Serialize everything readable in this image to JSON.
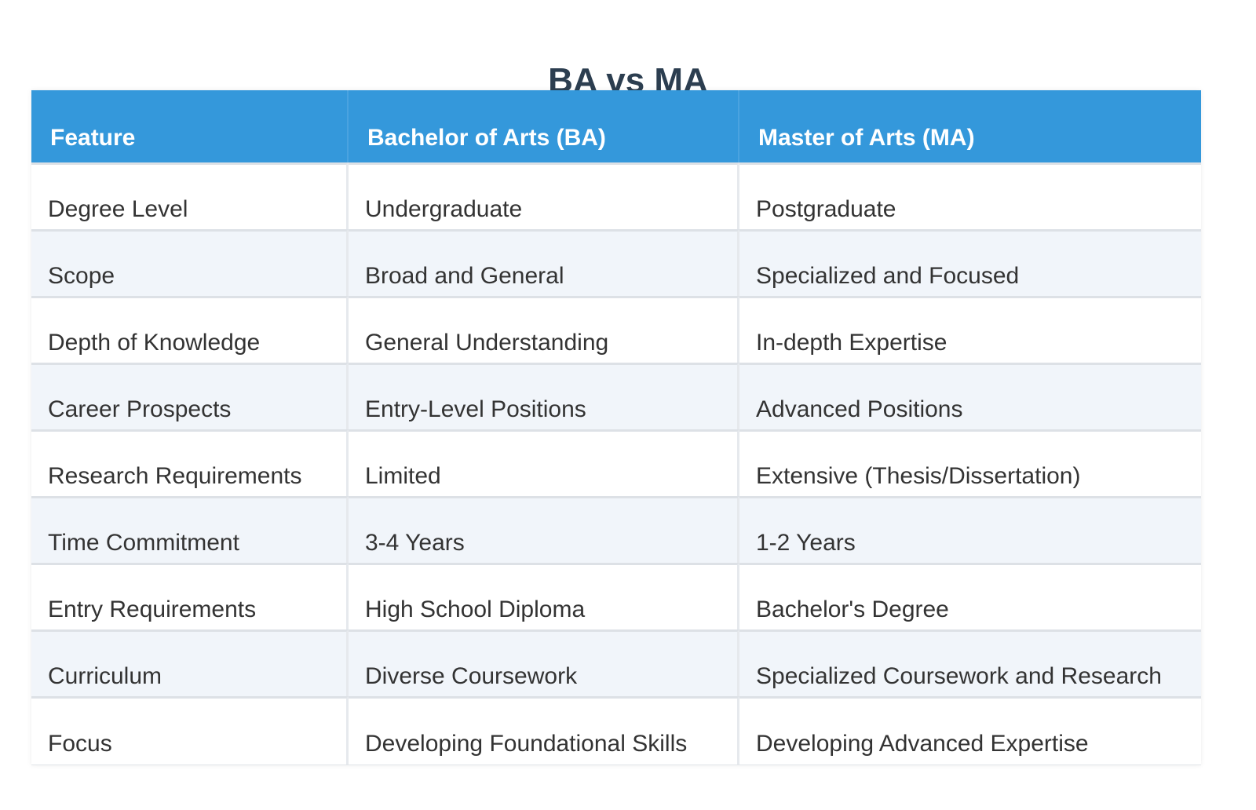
{
  "title": "BA vs MA",
  "table": {
    "headers": [
      "Feature",
      "Bachelor of Arts (BA)",
      "Master of Arts (MA)"
    ],
    "rows": [
      [
        "Degree Level",
        "Undergraduate",
        "Postgraduate"
      ],
      [
        "Scope",
        "Broad and General",
        "Specialized and Focused"
      ],
      [
        "Depth of Knowledge",
        "General Understanding",
        "In-depth Expertise"
      ],
      [
        "Career Prospects",
        "Entry-Level Positions",
        "Advanced Positions"
      ],
      [
        "Research Requirements",
        "Limited",
        "Extensive (Thesis/Dissertation)"
      ],
      [
        "Time Commitment",
        "3-4 Years",
        "1-2 Years"
      ],
      [
        "Entry Requirements",
        "High School Diploma",
        "Bachelor's Degree"
      ],
      [
        "Curriculum",
        "Diverse Coursework",
        "Specialized Coursework and Research"
      ],
      [
        "Focus",
        "Developing Foundational Skills",
        "Developing Advanced Expertise"
      ]
    ]
  },
  "colors": {
    "header_bg": "#3498db",
    "title": "#2c3e50",
    "row_alt": "#f1f5fa"
  }
}
